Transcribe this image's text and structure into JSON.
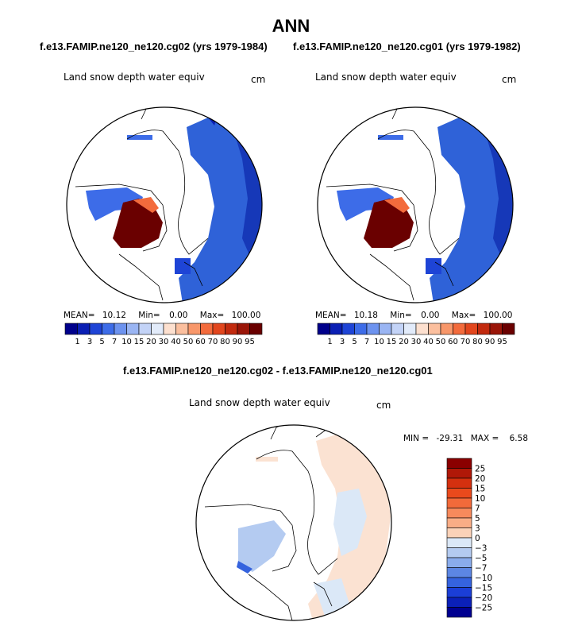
{
  "figure": {
    "title": "ANN",
    "top_left_case": "f.e13.FAMIP.ne120_ne120.cg02 (yrs 1979-1984)",
    "top_right_case": "f.e13.FAMIP.ne120_ne120.cg01 (yrs 1979-1982)",
    "diff_title": "f.e13.FAMIP.ne120_ne120.cg02 - f.e13.FAMIP.ne120_ne120.cg01"
  },
  "chart_data": [
    {
      "type": "heatmap",
      "projection": "polar stereographic (north pole)",
      "title": "Land snow depth water equiv",
      "units": "cm",
      "stats": {
        "mean_label": "MEAN=",
        "mean": "10.12",
        "min_label": "Min=",
        "min": "0.00",
        "max_label": "Max=",
        "max": "100.00"
      },
      "colorbar": {
        "orientation": "horizontal",
        "levels": [
          "1",
          "3",
          "5",
          "7",
          "10",
          "15",
          "20",
          "30",
          "40",
          "50",
          "60",
          "70",
          "80",
          "90",
          "95"
        ],
        "colors": [
          "#00008b",
          "#0a1fb4",
          "#1e44d6",
          "#3d6ce8",
          "#6d93ef",
          "#9ab5f3",
          "#c3d3f7",
          "#e2ebfa",
          "#fde0cf",
          "#fbbf9e",
          "#f8976a",
          "#f36b3c",
          "#e2461d",
          "#c22a0e",
          "#9a1508",
          "#6a0000"
        ]
      }
    },
    {
      "type": "heatmap",
      "projection": "polar stereographic (north pole)",
      "title": "Land snow depth water equiv",
      "units": "cm",
      "stats": {
        "mean_label": "MEAN=",
        "mean": "10.18",
        "min_label": "Min=",
        "min": "0.00",
        "max_label": "Max=",
        "max": "100.00"
      },
      "colorbar": {
        "orientation": "horizontal",
        "levels": [
          "1",
          "3",
          "5",
          "7",
          "10",
          "15",
          "20",
          "30",
          "40",
          "50",
          "60",
          "70",
          "80",
          "90",
          "95"
        ],
        "colors": [
          "#00008b",
          "#0a1fb4",
          "#1e44d6",
          "#3d6ce8",
          "#6d93ef",
          "#9ab5f3",
          "#c3d3f7",
          "#e2ebfa",
          "#fde0cf",
          "#fbbf9e",
          "#f8976a",
          "#f36b3c",
          "#e2461d",
          "#c22a0e",
          "#9a1508",
          "#6a0000"
        ]
      }
    },
    {
      "type": "heatmap",
      "projection": "polar stereographic (north pole)",
      "title": "Land snow depth water equiv",
      "units": "cm",
      "stats": {
        "min_label": "MIN =",
        "min": "-29.31",
        "max_label": "MAX =",
        "max": "6.58"
      },
      "colorbar": {
        "orientation": "vertical",
        "levels": [
          "25",
          "20",
          "15",
          "10",
          "7",
          "5",
          "3",
          "0",
          "−3",
          "−5",
          "−7",
          "−10",
          "−15",
          "−20",
          "−25"
        ],
        "colors": [
          "#8b0000",
          "#b01808",
          "#d4300f",
          "#ea4a1c",
          "#f26a3a",
          "#f78a5c",
          "#f9ad86",
          "#fbd2b8",
          "#dbe8f7",
          "#b4cbf1",
          "#8aacec",
          "#5c86e3",
          "#3563de",
          "#1b3ed6",
          "#0b20b8",
          "#000090"
        ]
      }
    }
  ]
}
